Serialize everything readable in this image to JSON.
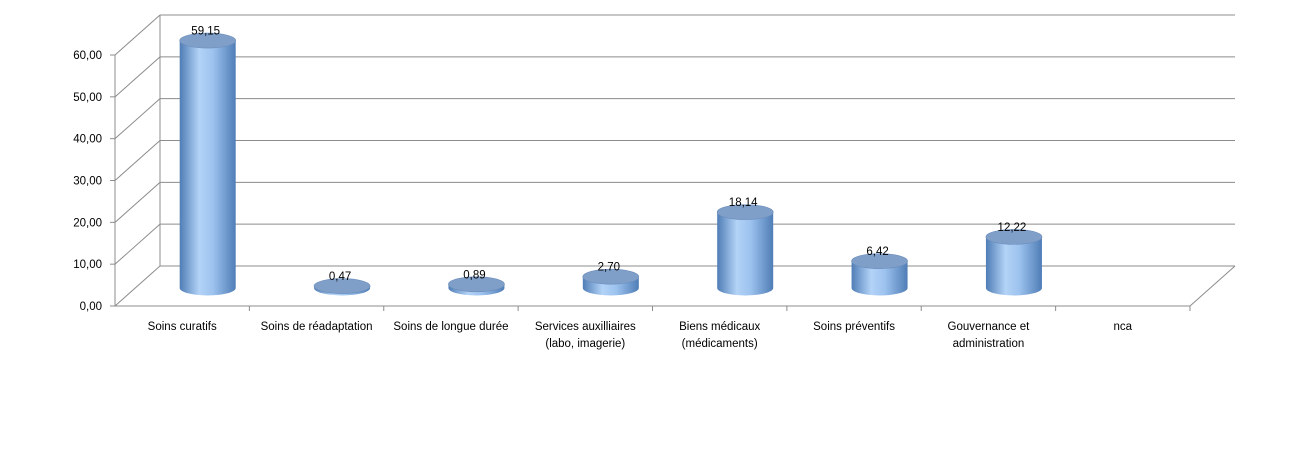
{
  "chart_data": {
    "type": "bar",
    "style": "3d-cylinder",
    "categories": [
      [
        "Soins curatifs"
      ],
      [
        "Soins de réadaptation"
      ],
      [
        "Soins de longue durée"
      ],
      [
        "Services auxilliaires",
        "(labo, imagerie)"
      ],
      [
        "Biens médicaux",
        "(médicaments)"
      ],
      [
        "Soins préventifs"
      ],
      [
        "Gouvernance et",
        "administration"
      ],
      [
        "nca"
      ]
    ],
    "values": [
      59.15,
      0.47,
      0.89,
      2.7,
      18.14,
      6.42,
      12.22,
      null
    ],
    "data_labels": [
      "59,15",
      "0,47",
      "0,89",
      "2,70",
      "18,14",
      "6,42",
      "12,22",
      ""
    ],
    "y_ticks": [
      "0,00",
      "10,00",
      "20,00",
      "30,00",
      "40,00",
      "50,00",
      "60,00"
    ],
    "ylim": [
      0,
      60
    ],
    "grid": true,
    "legend": "none",
    "colors": {
      "bar_light": "#b3d3f7",
      "bar_mid": "#7ea9dc",
      "bar_dark": "#4f7db6",
      "bar_top": "#7f9fc9",
      "grid": "#8c8c8c",
      "axis": "#8c8c8c"
    }
  }
}
